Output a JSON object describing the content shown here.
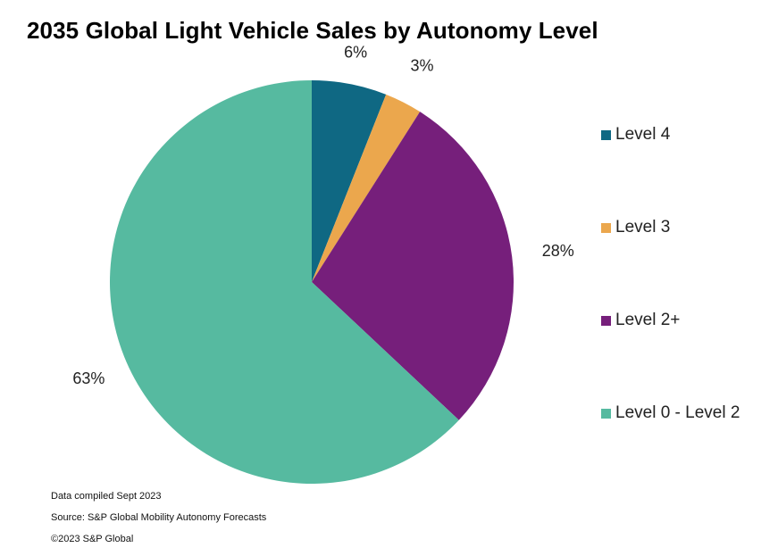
{
  "chart_data": {
    "type": "pie",
    "title": "2035 Global Light Vehicle Sales by Autonomy Level",
    "slices": [
      {
        "name": "Level 4",
        "value": 6,
        "label": "6%",
        "color": "#0f6883"
      },
      {
        "name": "Level 3",
        "value": 3,
        "label": "3%",
        "color": "#eba74d"
      },
      {
        "name": "Level 2+",
        "value": 28,
        "label": "28%",
        "color": "#761f7b"
      },
      {
        "name": "Level 0 - Level 2",
        "value": 63,
        "label": "63%",
        "color": "#56baa0"
      }
    ],
    "legend_position": "right"
  },
  "footnotes": {
    "compiled": "Data compiled Sept 2023",
    "source": "Source: S&P Global Mobility Autonomy Forecasts",
    "copyright": "©2023 S&P Global"
  }
}
